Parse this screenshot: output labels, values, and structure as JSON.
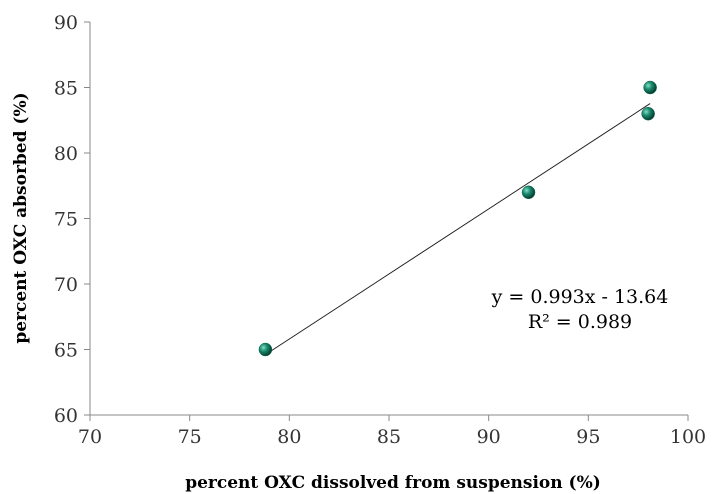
{
  "chart_data": {
    "type": "scatter",
    "title": "",
    "xlabel": "percent OXC dissolved from suspension (%)",
    "ylabel": "percent OXC absorbed (%)",
    "xlim": [
      70,
      100
    ],
    "ylim": [
      60,
      90
    ],
    "xticks": [
      70,
      75,
      80,
      85,
      90,
      95,
      100
    ],
    "yticks": [
      60,
      65,
      70,
      75,
      80,
      85,
      90
    ],
    "grid": false,
    "series": [
      {
        "points": [
          {
            "x": 78.8,
            "y": 65
          },
          {
            "x": 92,
            "y": 77
          },
          {
            "x": 98,
            "y": 83
          },
          {
            "x": 98.1,
            "y": 85
          }
        ],
        "color": "#0f6b55"
      }
    ],
    "trendline": {
      "slope": 0.993,
      "intercept": -13.64,
      "x_range": [
        78.8,
        98.1
      ],
      "equation_label": "y = 0.993x - 13.64",
      "r2_label": "R² = 0.989"
    }
  }
}
